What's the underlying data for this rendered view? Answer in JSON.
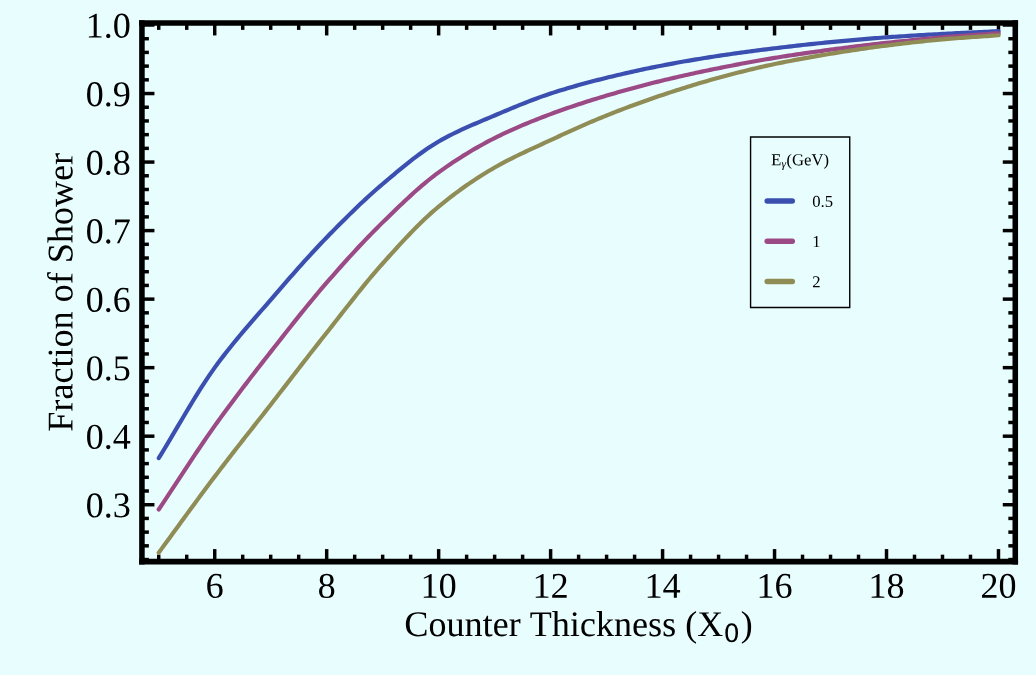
{
  "chart_data": {
    "type": "line",
    "xlabel": "Counter Thickness (X$_{0}$)",
    "ylabel": "Fraction of Shower",
    "legend_title": "E$_{γ}$(GeV)",
    "x": [
      5,
      6,
      7,
      8,
      9,
      10,
      11,
      12,
      13,
      14,
      15,
      16,
      17,
      18,
      19,
      20
    ],
    "series": [
      {
        "name": "0.5",
        "color": "#3a4fb0",
        "values": [
          0.368,
          0.5,
          0.599,
          0.69,
          0.768,
          0.83,
          0.868,
          0.9,
          0.923,
          0.941,
          0.955,
          0.966,
          0.975,
          0.982,
          0.987,
          0.991
        ]
      },
      {
        "name": "1",
        "color": "#9b4a86",
        "values": [
          0.293,
          0.415,
          0.523,
          0.624,
          0.712,
          0.785,
          0.835,
          0.87,
          0.897,
          0.919,
          0.937,
          0.952,
          0.964,
          0.974,
          0.982,
          0.988
        ]
      },
      {
        "name": "2",
        "color": "#8f8c55",
        "values": [
          0.23,
          0.341,
          0.446,
          0.551,
          0.652,
          0.735,
          0.792,
          0.832,
          0.868,
          0.898,
          0.923,
          0.943,
          0.958,
          0.97,
          0.979,
          0.985
        ]
      }
    ],
    "xlim": [
      4.7,
      20.3
    ],
    "ylim": [
      0.217,
      1.003
    ],
    "xticks": [
      6,
      8,
      10,
      12,
      14,
      16,
      18,
      20
    ],
    "yticks": [
      0.3,
      0.4,
      0.5,
      0.6,
      0.7,
      0.8,
      0.9,
      {
        "value": 1.0,
        "label": "1.0"
      }
    ],
    "grid": false,
    "legend": "right",
    "marker": "none",
    "line_style": "solid"
  }
}
